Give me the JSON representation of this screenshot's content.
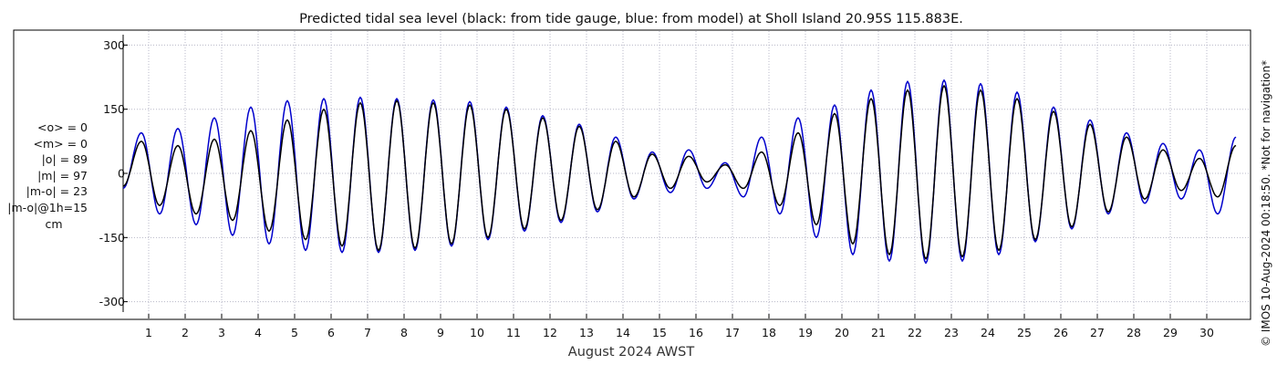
{
  "chart_data": {
    "type": "line",
    "title": "Predicted tidal sea level (black: from tide gauge, blue: from model) at Sholl Island 20.95S 115.883E.",
    "xlabel": "August 2024 AWST",
    "ylabel": "",
    "x_unit": "day of August 2024",
    "xlim": [
      0.3,
      31.2
    ],
    "ylim": [
      -320,
      320
    ],
    "x_ticks": [
      "1",
      "2",
      "3",
      "4",
      "5",
      "6",
      "7",
      "8",
      "9",
      "10",
      "11",
      "12",
      "13",
      "14",
      "15",
      "16",
      "17",
      "18",
      "19",
      "20",
      "21",
      "22",
      "23",
      "24",
      "25",
      "26",
      "27",
      "28",
      "29",
      "30"
    ],
    "y_ticks": [
      "300",
      "150",
      "0",
      "-150",
      "-300"
    ],
    "grid": true,
    "colors": {
      "gauge": "#000000",
      "model": "#0000cc"
    },
    "series": [
      {
        "name": "black: from tide gauge",
        "color": "#000000",
        "x": [
          0.3,
          0.8,
          1.3,
          1.8,
          2.3,
          2.8,
          3.3,
          3.8,
          4.3,
          4.8,
          5.3,
          5.8,
          6.3,
          6.8,
          7.3,
          7.8,
          8.3,
          8.8,
          9.3,
          9.8,
          10.3,
          10.8,
          11.3,
          11.8,
          12.3,
          12.8,
          13.3,
          13.8,
          14.3,
          14.8,
          15.3,
          15.8,
          16.3,
          16.8,
          17.3,
          17.8,
          18.3,
          18.8,
          19.3,
          19.8,
          20.3,
          20.8,
          21.3,
          21.8,
          22.3,
          22.8,
          23.3,
          23.8,
          24.3,
          24.8,
          25.3,
          25.8,
          26.3,
          26.8,
          27.3,
          27.8,
          28.3,
          28.8,
          29.3,
          29.8,
          30.3,
          30.8
        ],
        "y": [
          -30,
          75,
          -75,
          65,
          -95,
          80,
          -110,
          100,
          -135,
          125,
          -155,
          150,
          -170,
          165,
          -180,
          170,
          -175,
          165,
          -165,
          160,
          -150,
          150,
          -130,
          130,
          -110,
          110,
          -85,
          75,
          -55,
          45,
          -35,
          40,
          -20,
          20,
          -35,
          50,
          -75,
          95,
          -120,
          140,
          -165,
          175,
          -190,
          195,
          -200,
          205,
          -195,
          195,
          -180,
          175,
          -155,
          145,
          -125,
          115,
          -90,
          85,
          -60,
          55,
          -40,
          35,
          -55,
          65
        ]
      },
      {
        "name": "blue: from model",
        "color": "#0000cc",
        "x": [
          0.3,
          0.8,
          1.3,
          1.8,
          2.3,
          2.8,
          3.3,
          3.8,
          4.3,
          4.8,
          5.3,
          5.8,
          6.3,
          6.8,
          7.3,
          7.8,
          8.3,
          8.8,
          9.3,
          9.8,
          10.3,
          10.8,
          11.3,
          11.8,
          12.3,
          12.8,
          13.3,
          13.8,
          14.3,
          14.8,
          15.3,
          15.8,
          16.3,
          16.8,
          17.3,
          17.8,
          18.3,
          18.8,
          19.3,
          19.8,
          20.3,
          20.8,
          21.3,
          21.8,
          22.3,
          22.8,
          23.3,
          23.8,
          24.3,
          24.8,
          25.3,
          25.8,
          26.3,
          26.8,
          27.3,
          27.8,
          28.3,
          28.8,
          29.3,
          29.8,
          30.3,
          30.8
        ],
        "y": [
          -35,
          95,
          -95,
          105,
          -120,
          130,
          -145,
          155,
          -165,
          170,
          -180,
          175,
          -185,
          178,
          -185,
          175,
          -180,
          172,
          -170,
          168,
          -155,
          155,
          -135,
          135,
          -115,
          115,
          -90,
          85,
          -60,
          50,
          -45,
          55,
          -35,
          25,
          -55,
          85,
          -95,
          130,
          -150,
          160,
          -190,
          195,
          -205,
          215,
          -210,
          218,
          -205,
          210,
          -190,
          190,
          -160,
          155,
          -130,
          125,
          -95,
          95,
          -70,
          70,
          -60,
          55,
          -95,
          85
        ]
      }
    ],
    "stats_lines": [
      "<o> = 0",
      "<m> = 0",
      "|o| = 89",
      "|m| = 97",
      "|m-o| = 23",
      "|m-o|@1h=15"
    ],
    "stats_unit": "cm",
    "watermark": "© IMOS 10-Aug-2024 00:18:50. *Not for navigation*"
  }
}
